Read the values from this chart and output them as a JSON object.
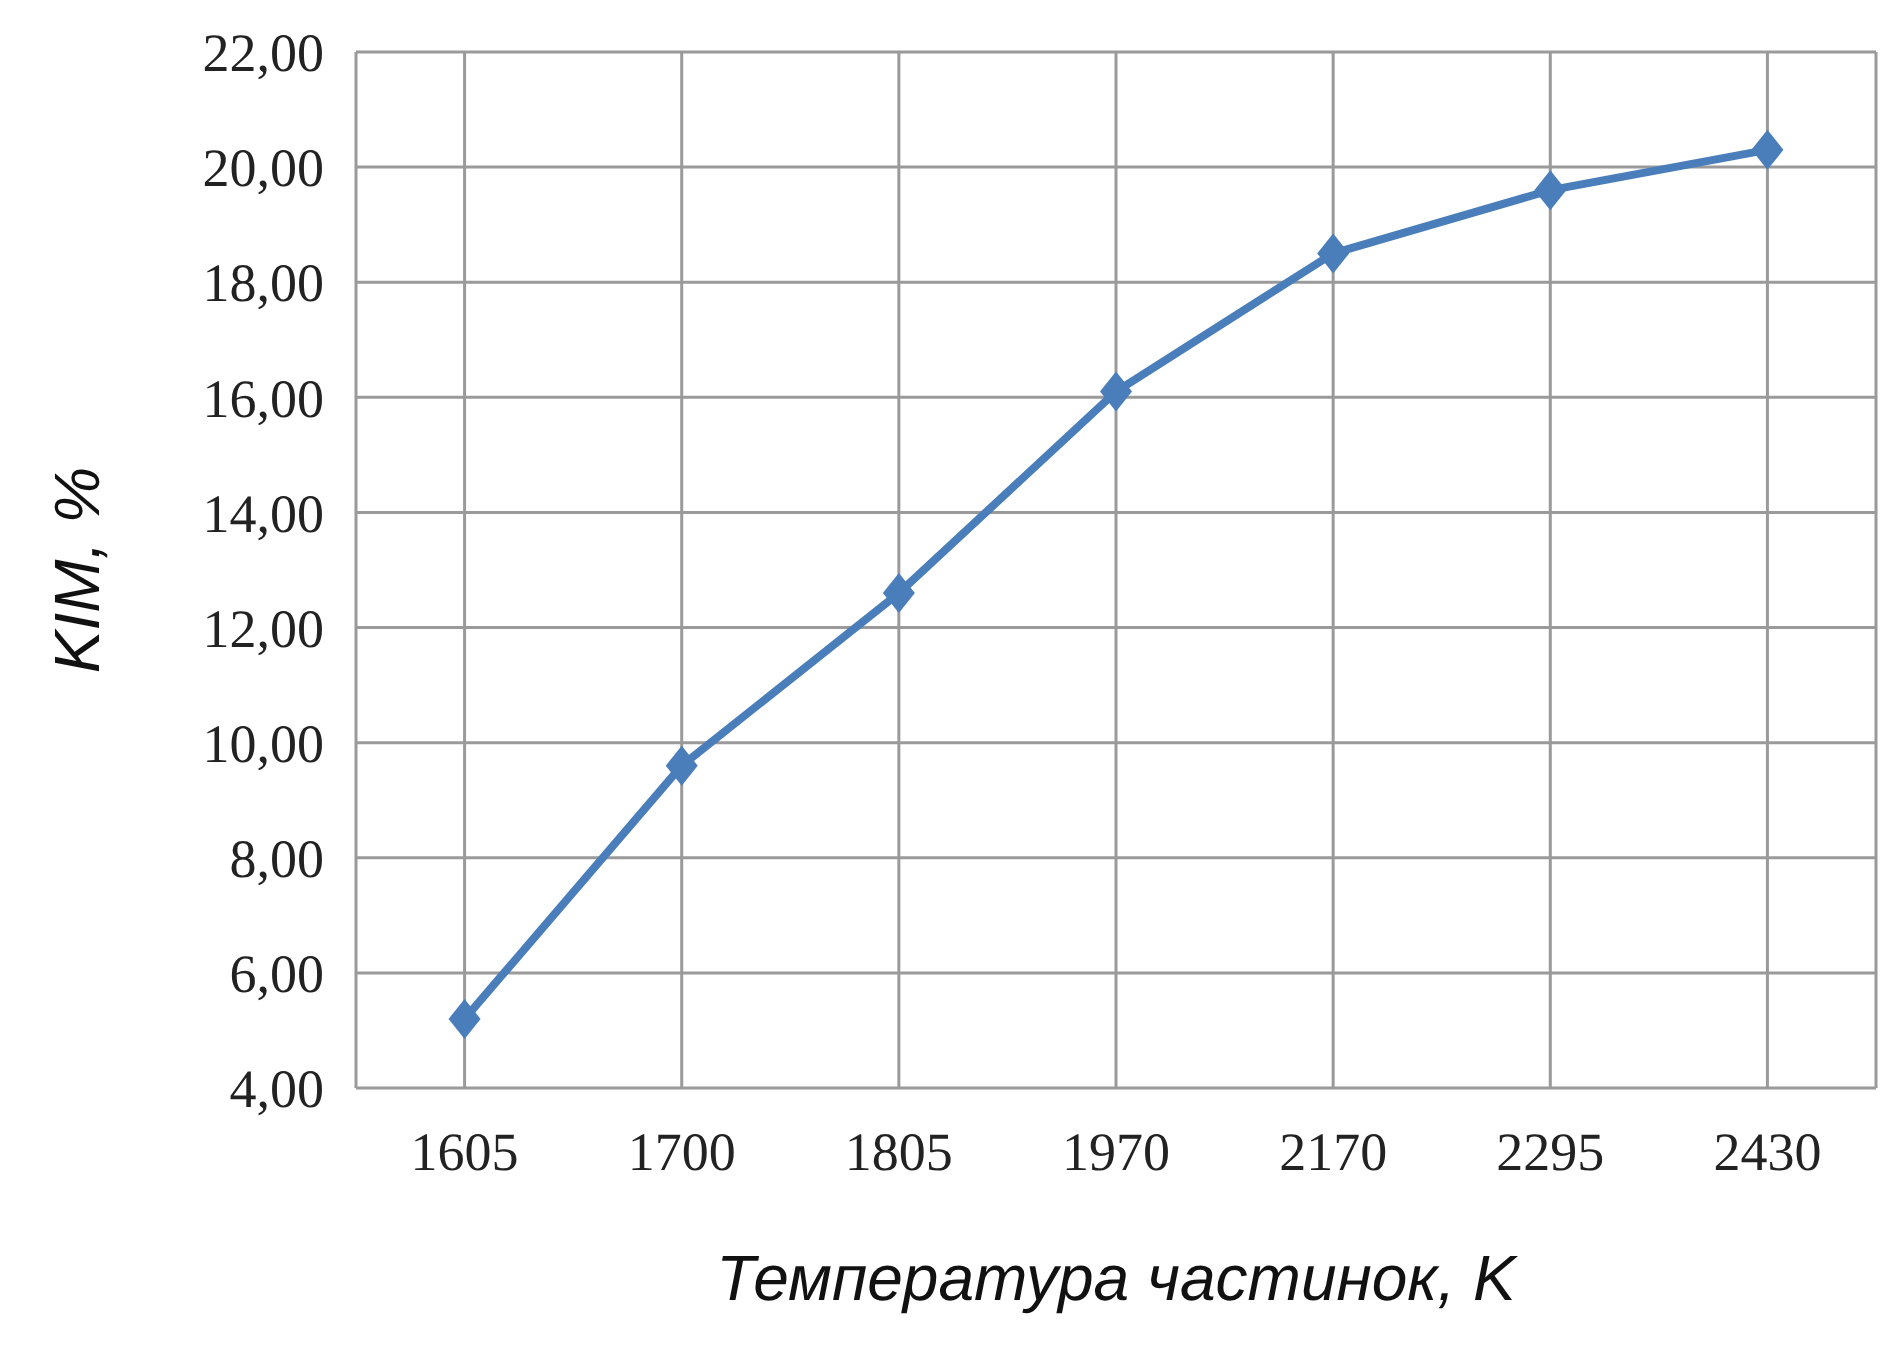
{
  "chart_data": {
    "type": "line",
    "xlabel": "Температура частинок, K",
    "ylabel": "KIM, %",
    "categories": [
      "1605",
      "1700",
      "1805",
      "1970",
      "2170",
      "2295",
      "2430"
    ],
    "series": [
      {
        "color": "#4a7ebb",
        "values": [
          5.2,
          9.6,
          12.6,
          16.1,
          18.5,
          19.6,
          20.3
        ]
      }
    ],
    "ylim": [
      4,
      22
    ],
    "yticks": [
      {
        "value": 4,
        "label": "4,00"
      },
      {
        "value": 6,
        "label": "6,00"
      },
      {
        "value": 8,
        "label": "8,00"
      },
      {
        "value": 10,
        "label": "10,00"
      },
      {
        "value": 12,
        "label": "12,00"
      },
      {
        "value": 14,
        "label": "14,00"
      },
      {
        "value": 16,
        "label": "16,00"
      },
      {
        "value": 18,
        "label": "18,00"
      },
      {
        "value": 20,
        "label": "20,00"
      },
      {
        "value": 22,
        "label": "22,00"
      }
    ],
    "grid": true,
    "marker": "diamond",
    "line_style": "solid"
  }
}
